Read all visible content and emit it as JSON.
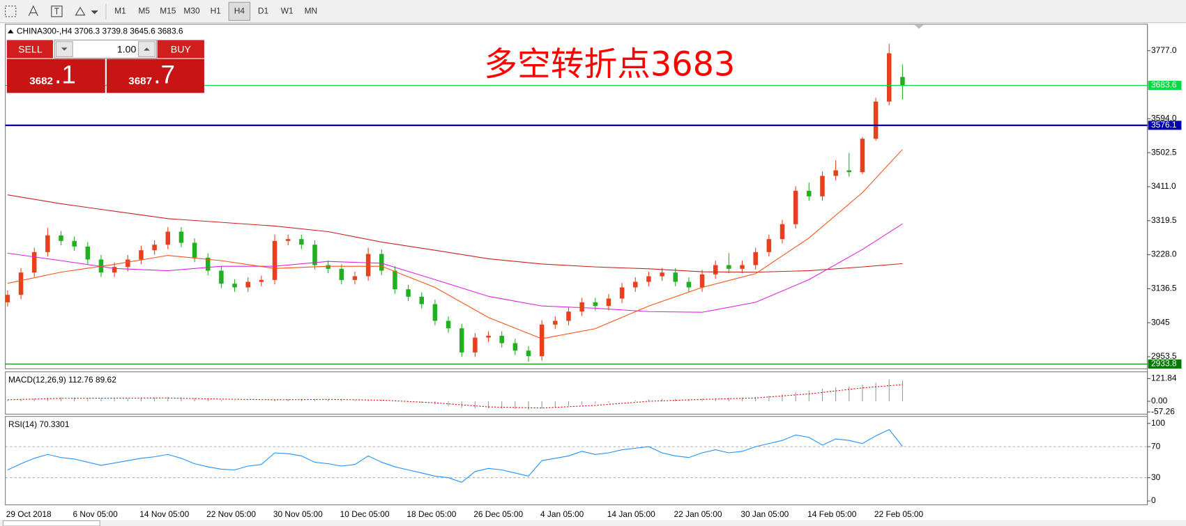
{
  "toolbar": {
    "buttons": [
      "M1",
      "M5",
      "M15",
      "M30",
      "H1",
      "H4",
      "D1",
      "W1",
      "MN"
    ],
    "selected": "H4"
  },
  "trade_panel": {
    "sell_label": "SELL",
    "buy_label": "BUY",
    "lot": "1.00",
    "sell_price": {
      "main": "3682",
      "fraction": ".1"
    },
    "buy_price": {
      "main": "3687",
      "fraction": ".7"
    }
  },
  "chart_data": [
    {
      "type": "candlestick",
      "title": "CHINA300-,H4  3706.3 3739.8 3645.6 3683.6",
      "annotation": "多空转折点3683",
      "categories": [
        "29 Oct 2018",
        null,
        null,
        null,
        null,
        "6 Nov 05:00",
        null,
        null,
        null,
        null,
        "14 Nov 05:00",
        null,
        null,
        null,
        null,
        "22 Nov 05:00",
        null,
        null,
        null,
        null,
        "30 Nov 05:00",
        null,
        null,
        null,
        null,
        "10 Dec 05:00",
        null,
        null,
        null,
        null,
        "18 Dec 05:00",
        null,
        null,
        null,
        null,
        "26 Dec 05:00",
        null,
        null,
        null,
        null,
        "4 Jan 05:00",
        null,
        null,
        null,
        null,
        "14 Jan 05:00",
        null,
        null,
        null,
        null,
        "22 Jan 05:00",
        null,
        null,
        null,
        null,
        "30 Jan 05:00",
        null,
        null,
        null,
        null,
        "14 Feb 05:00",
        null,
        null,
        null,
        null,
        "22 Feb 05:00",
        null,
        null
      ],
      "ohlc": [
        [
          3100,
          3132,
          3088,
          3120
        ],
        [
          3120,
          3192,
          3108,
          3180
        ],
        [
          3180,
          3247,
          3168,
          3235
        ],
        [
          3235,
          3300,
          3223,
          3280
        ],
        [
          3280,
          3292,
          3253,
          3265
        ],
        [
          3265,
          3277,
          3238,
          3250
        ],
        [
          3250,
          3262,
          3203,
          3215
        ],
        [
          3215,
          3227,
          3168,
          3180
        ],
        [
          3180,
          3207,
          3168,
          3195
        ],
        [
          3195,
          3227,
          3183,
          3215
        ],
        [
          3215,
          3252,
          3203,
          3240
        ],
        [
          3240,
          3267,
          3228,
          3255
        ],
        [
          3255,
          3302,
          3243,
          3290
        ],
        [
          3290,
          3302,
          3248,
          3260
        ],
        [
          3260,
          3272,
          3208,
          3220
        ],
        [
          3220,
          3232,
          3173,
          3185
        ],
        [
          3185,
          3197,
          3138,
          3150
        ],
        [
          3150,
          3162,
          3128,
          3140
        ],
        [
          3140,
          3167,
          3128,
          3155
        ],
        [
          3155,
          3172,
          3143,
          3160
        ],
        [
          3160,
          3282,
          3148,
          3265
        ],
        [
          3265,
          3282,
          3253,
          3270
        ],
        [
          3270,
          3282,
          3243,
          3255
        ],
        [
          3255,
          3267,
          3188,
          3200
        ],
        [
          3200,
          3212,
          3178,
          3190
        ],
        [
          3190,
          3202,
          3148,
          3160
        ],
        [
          3160,
          3182,
          3148,
          3170
        ],
        [
          3170,
          3247,
          3158,
          3230
        ],
        [
          3230,
          3242,
          3173,
          3185
        ],
        [
          3185,
          3197,
          3123,
          3135
        ],
        [
          3135,
          3147,
          3103,
          3115
        ],
        [
          3115,
          3127,
          3083,
          3095
        ],
        [
          3095,
          3107,
          3038,
          3050
        ],
        [
          3050,
          3062,
          3018,
          3030
        ],
        [
          3030,
          3042,
          2953,
          2965
        ],
        [
          2965,
          3017,
          2953,
          3005
        ],
        [
          3005,
          3022,
          2993,
          3010
        ],
        [
          3010,
          3022,
          2978,
          2990
        ],
        [
          2990,
          3002,
          2958,
          2970
        ],
        [
          2970,
          2982,
          2940,
          2955
        ],
        [
          2955,
          3052,
          2943,
          3040
        ],
        [
          3040,
          3062,
          3028,
          3050
        ],
        [
          3050,
          3087,
          3038,
          3075
        ],
        [
          3075,
          3112,
          3063,
          3100
        ],
        [
          3100,
          3112,
          3078,
          3090
        ],
        [
          3090,
          3122,
          3078,
          3110
        ],
        [
          3110,
          3152,
          3098,
          3140
        ],
        [
          3140,
          3167,
          3128,
          3155
        ],
        [
          3155,
          3182,
          3143,
          3170
        ],
        [
          3170,
          3192,
          3158,
          3180
        ],
        [
          3180,
          3192,
          3143,
          3155
        ],
        [
          3155,
          3167,
          3128,
          3140
        ],
        [
          3140,
          3187,
          3128,
          3175
        ],
        [
          3175,
          3212,
          3163,
          3200
        ],
        [
          3200,
          3232,
          3178,
          3190
        ],
        [
          3190,
          3212,
          3178,
          3200
        ],
        [
          3200,
          3247,
          3188,
          3235
        ],
        [
          3235,
          3282,
          3223,
          3270
        ],
        [
          3270,
          3322,
          3258,
          3310
        ],
        [
          3310,
          3412,
          3298,
          3400
        ],
        [
          3400,
          3422,
          3373,
          3385
        ],
        [
          3385,
          3452,
          3373,
          3440
        ],
        [
          3440,
          3482,
          3428,
          3455
        ],
        [
          3455,
          3502,
          3438,
          3450
        ],
        [
          3450,
          3545,
          3445,
          3540
        ],
        [
          3540,
          3650,
          3535,
          3640
        ],
        [
          3640,
          3795,
          3630,
          3770
        ],
        [
          3706.3,
          3739.8,
          3645.6,
          3683.6
        ]
      ],
      "up_color": "#e8401c",
      "down_color": "#20b020",
      "ylim": [
        2921,
        3848.2
      ],
      "yticks": [
        2953.5,
        3045,
        {
          "value": 3136.5,
          "label": "3136.5"
        },
        {
          "value": 3228,
          "label": "3228.0"
        },
        3319.5,
        {
          "value": 3411,
          "label": "3411.0"
        },
        3502.5,
        {
          "value": 3594,
          "label": "3594.0"
        },
        {
          "value": 3777,
          "label": "3777.0"
        }
      ],
      "price_lines": [
        {
          "value": 3683.6,
          "color": "#00dd44"
        },
        {
          "value": 3576.1,
          "color": "#0000b0"
        },
        {
          "value": 2933.8,
          "color": "#007a00"
        }
      ],
      "series": [
        {
          "color": "#cc2020",
          "x": [
            0,
            4,
            8,
            12,
            16,
            20,
            24,
            28,
            32,
            36,
            40,
            44,
            48,
            52,
            56,
            60,
            64,
            67
          ],
          "values": [
            3389,
            3365,
            3345,
            3325,
            3315,
            3305,
            3290,
            3262,
            3240,
            3217,
            3203,
            3195,
            3190,
            3182,
            3181,
            3185,
            3195,
            3204
          ]
        },
        {
          "color": "#e020e0",
          "x": [
            0,
            4,
            8,
            12,
            16,
            20,
            24,
            28,
            32,
            36,
            40,
            44,
            48,
            52,
            56,
            60,
            64,
            67
          ],
          "values": [
            3232,
            3212,
            3191,
            3185,
            3197,
            3197,
            3210,
            3205,
            3161,
            3116,
            3090,
            3084,
            3075,
            3073,
            3100,
            3161,
            3242,
            3311
          ]
        },
        {
          "color": "#ff5010",
          "x": [
            0,
            4,
            8,
            12,
            16,
            20,
            24,
            28,
            32,
            36,
            40,
            44,
            48,
            52,
            56,
            60,
            64,
            67
          ],
          "values": [
            3151,
            3181,
            3202,
            3226,
            3212,
            3191,
            3197,
            3197,
            3140,
            3059,
            3002,
            3029,
            3090,
            3140,
            3177,
            3273,
            3395,
            3511
          ]
        }
      ]
    },
    {
      "type": "bar",
      "title": "MACD(12,26,9) 112.76 89.62",
      "color": "#999999",
      "values": [
        5,
        10,
        15,
        20,
        22,
        20,
        18,
        15,
        14,
        15,
        18,
        20,
        24,
        22,
        18,
        12,
        6,
        3,
        2,
        2,
        8,
        12,
        14,
        12,
        10,
        6,
        5,
        8,
        6,
        2,
        -4,
        -10,
        -18,
        -25,
        -35,
        -38,
        -38,
        -40,
        -42,
        -45,
        -38,
        -32,
        -25,
        -18,
        -12,
        -6,
        0,
        5,
        10,
        14,
        14,
        12,
        14,
        17,
        18,
        20,
        24,
        30,
        38,
        50,
        58,
        68,
        75,
        80,
        90,
        100,
        118,
        112.76
      ],
      "signal": {
        "color": "#e00000",
        "x": [
          0,
          4,
          8,
          12,
          16,
          20,
          24,
          28,
          32,
          36,
          40,
          44,
          48,
          52,
          56,
          60,
          64,
          67
        ],
        "values": [
          8,
          16,
          17,
          18,
          12,
          8,
          10,
          6,
          -8,
          -30,
          -36,
          -22,
          0,
          10,
          18,
          40,
          72,
          89.62
        ]
      },
      "ylim": [
        -69,
        158.4
      ],
      "yticks": [
        121.84,
        {
          "value": 0,
          "label": "0.00"
        },
        -57.26
      ]
    },
    {
      "type": "line",
      "title": "RSI(14) 70.3301",
      "color": "#1e90ff",
      "values": [
        40,
        48,
        55,
        60,
        56,
        54,
        50,
        46,
        49,
        52,
        55,
        57,
        60,
        55,
        48,
        44,
        41,
        40,
        45,
        47,
        62,
        61,
        58,
        50,
        48,
        45,
        47,
        58,
        50,
        44,
        40,
        36,
        32,
        30,
        24,
        38,
        42,
        40,
        36,
        32,
        52,
        55,
        58,
        64,
        60,
        62,
        66,
        68,
        70,
        62,
        58,
        56,
        62,
        66,
        62,
        64,
        70,
        74,
        78,
        85,
        82,
        72,
        80,
        78,
        74,
        84,
        92,
        70.3301
      ],
      "levels": [
        70,
        30
      ],
      "ylim": [
        -5,
        109
      ],
      "yticks": [
        100,
        70,
        30,
        0
      ]
    }
  ]
}
